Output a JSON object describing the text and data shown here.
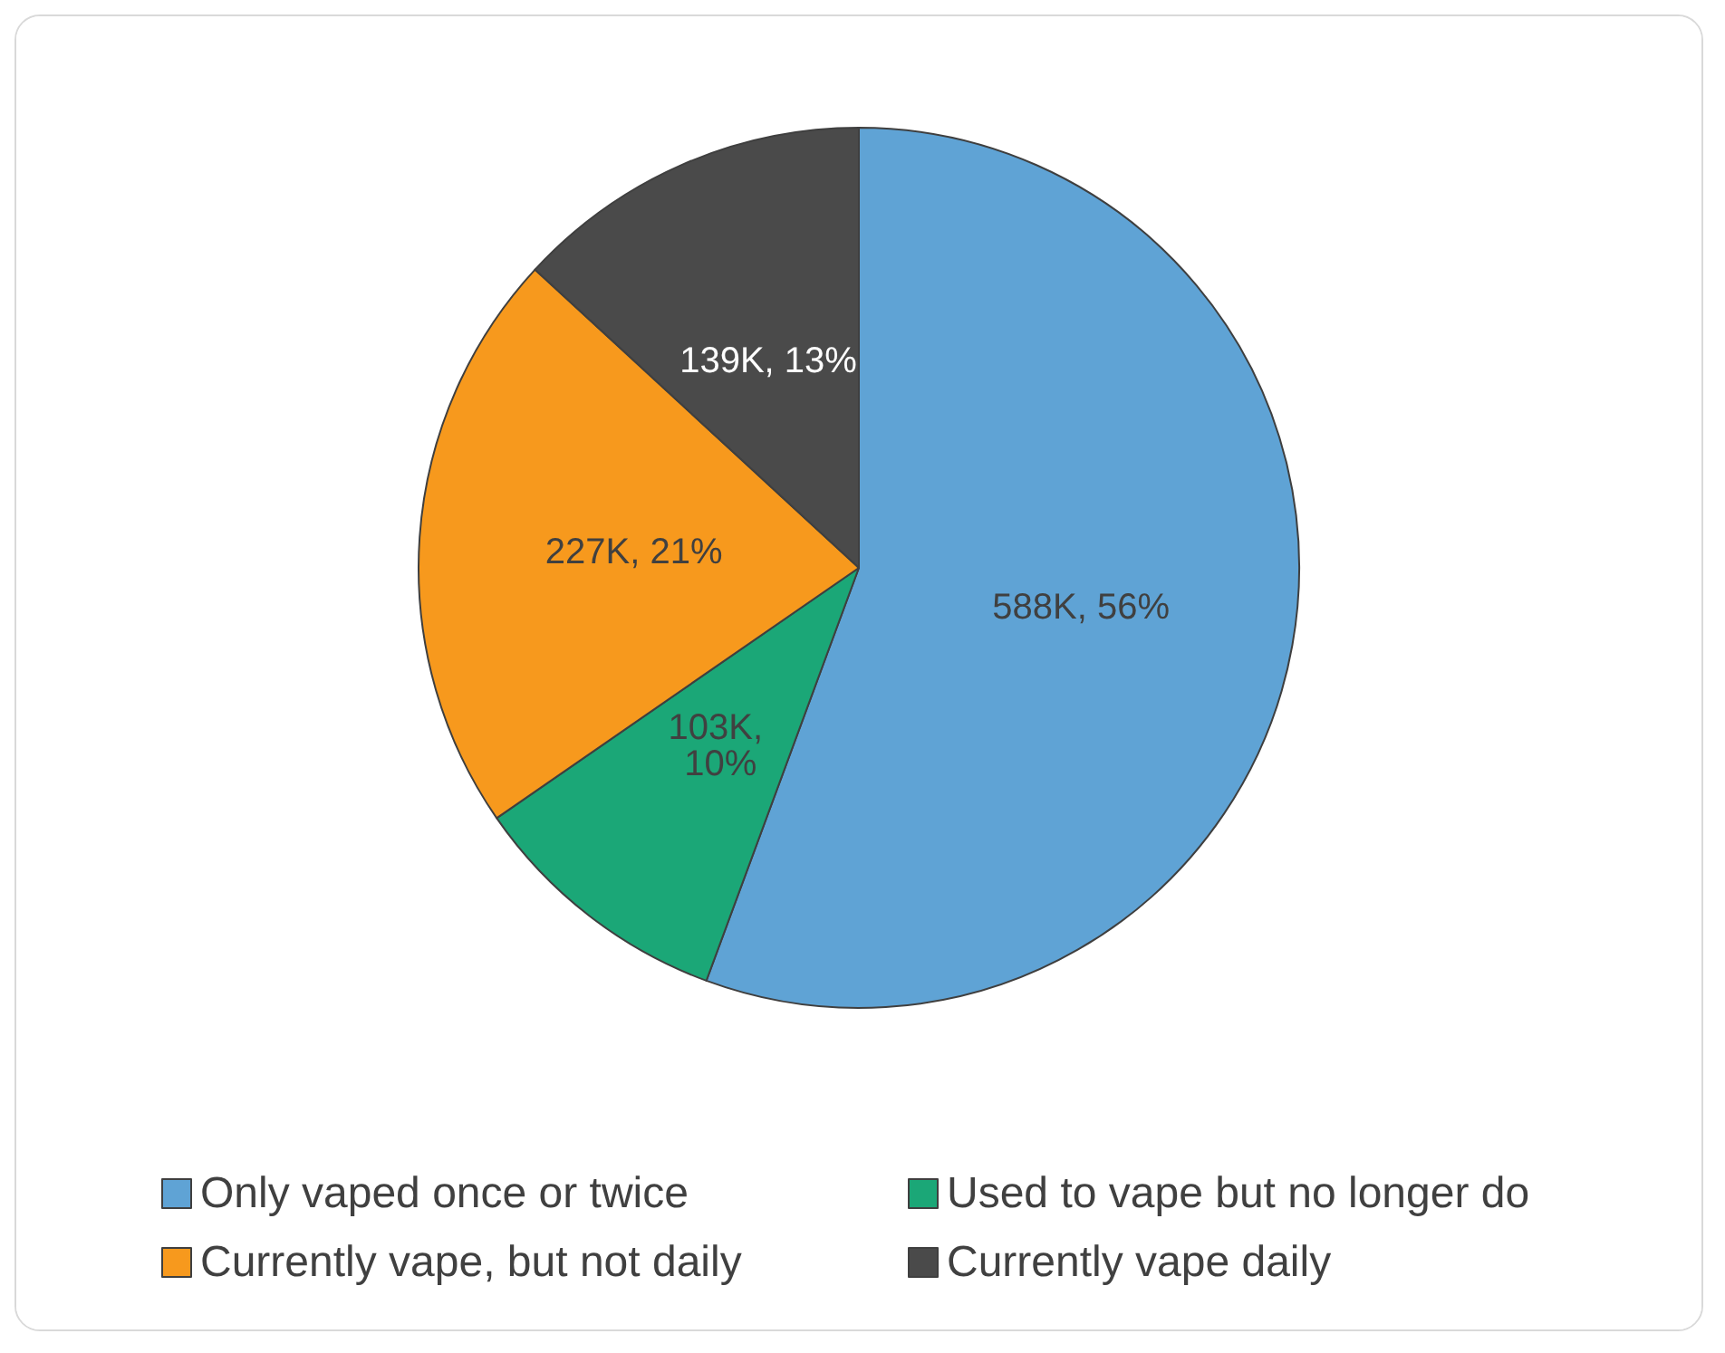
{
  "chart_data": {
    "type": "pie",
    "categories": [
      "Only vaped once or twice",
      "Used to vape but no longer do",
      "Currently vape, but not daily",
      "Currently vape daily"
    ],
    "values": [
      588000,
      103000,
      227000,
      139000
    ],
    "value_labels": [
      "588K, 56%",
      "103K, 10%",
      "227K, 21%",
      "139K, 13%"
    ],
    "colors": [
      "#5fa3d5",
      "#1ba777",
      "#f7991d",
      "#4a4a4a"
    ],
    "legend": "bottom"
  }
}
